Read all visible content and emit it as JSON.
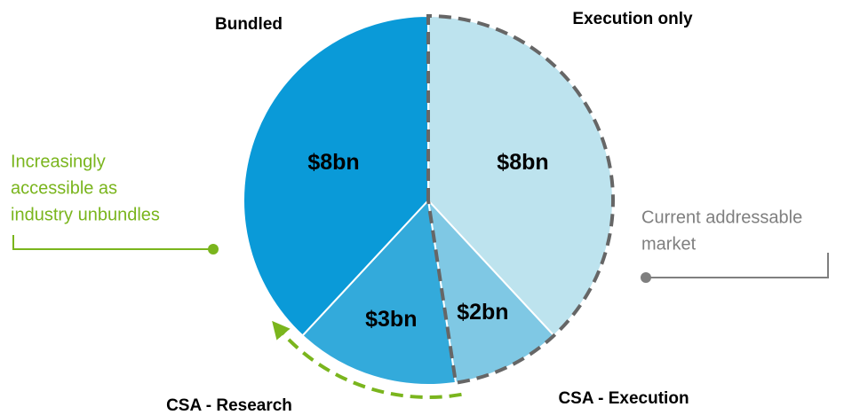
{
  "chart_data": {
    "type": "pie",
    "categories": [
      "Execution only",
      "CSA - Execution",
      "CSA - Research",
      "Bundled"
    ],
    "values": [
      8,
      2,
      3,
      8
    ],
    "value_labels": [
      "$8bn",
      "$2bn",
      "$3bn",
      "$8bn"
    ],
    "colors": [
      "#bde3ee",
      "#7fc8e4",
      "#33aadb",
      "#0a9ad8"
    ],
    "annotations": [
      {
        "lines": [
          "Increasingly",
          "accessible as",
          "industry unbundles"
        ],
        "color": "#7ab51d"
      },
      {
        "lines": [
          "Current addressable",
          "market"
        ],
        "color": "#7f7f7f"
      }
    ]
  }
}
